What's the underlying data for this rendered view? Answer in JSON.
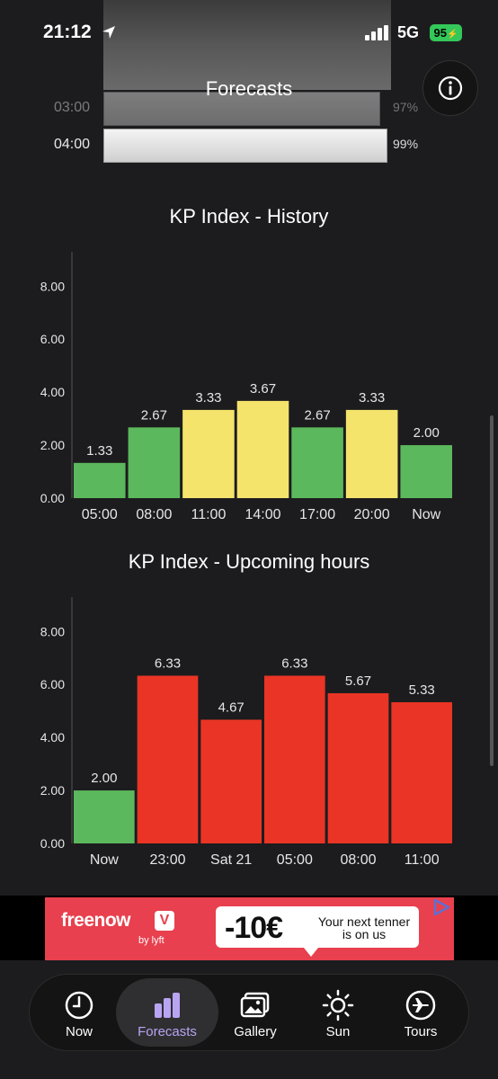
{
  "status_bar": {
    "time": "21:12",
    "network": "5G",
    "battery": "95"
  },
  "header": {
    "title": "Forecasts",
    "info_icon": "info-circle-icon"
  },
  "forecast_rows": [
    {
      "time": "03:00",
      "percent": "97%",
      "probability": 0.97
    },
    {
      "time": "04:00",
      "percent": "99%",
      "probability": 0.99
    }
  ],
  "colors": {
    "green": "#5cb85c",
    "yellow": "#f5e46b",
    "red": "#ea3425",
    "accent": "#b9a4f3",
    "battery": "#34c759",
    "ad": "#e8404e"
  },
  "chart_data": [
    {
      "type": "bar",
      "title": "KP Index - History",
      "categories": [
        "05:00",
        "08:00",
        "11:00",
        "14:00",
        "17:00",
        "20:00",
        "Now"
      ],
      "values": [
        1.33,
        2.67,
        3.33,
        3.67,
        2.67,
        3.33,
        2.0
      ],
      "value_labels": [
        "1.33",
        "2.67",
        "3.33",
        "3.67",
        "2.67",
        "3.33",
        "2.00"
      ],
      "bar_colors": [
        "green",
        "green",
        "yellow",
        "yellow",
        "green",
        "yellow",
        "green"
      ],
      "yticks": [
        "0.00",
        "2.00",
        "4.00",
        "6.00",
        "8.00"
      ],
      "ylim": [
        0,
        9.3
      ],
      "grid": false,
      "legend": false
    },
    {
      "type": "bar",
      "title": "KP Index - Upcoming hours",
      "categories": [
        "Now",
        "23:00",
        "Sat 21",
        "05:00",
        "08:00",
        "11:00"
      ],
      "values": [
        2.0,
        6.33,
        4.67,
        6.33,
        5.67,
        5.33
      ],
      "value_labels": [
        "2.00",
        "6.33",
        "4.67",
        "6.33",
        "5.67",
        "5.33"
      ],
      "bar_colors": [
        "green",
        "red",
        "red",
        "red",
        "red",
        "red"
      ],
      "yticks": [
        "0.00",
        "2.00",
        "4.00",
        "6.00",
        "8.00"
      ],
      "ylim": [
        0,
        9.3
      ],
      "grid": false,
      "legend": false
    }
  ],
  "ad": {
    "brand": "freenow",
    "by": "by lyft",
    "discount": "-10€",
    "tagline": "Your next tenner is on us"
  },
  "tabs": [
    {
      "label": "Now",
      "icon": "clock-icon",
      "active": false
    },
    {
      "label": "Forecasts",
      "icon": "bar-chart-icon",
      "active": true
    },
    {
      "label": "Gallery",
      "icon": "gallery-icon",
      "active": false
    },
    {
      "label": "Sun",
      "icon": "sun-icon",
      "active": false
    },
    {
      "label": "Tours",
      "icon": "airplane-icon",
      "active": false
    }
  ]
}
